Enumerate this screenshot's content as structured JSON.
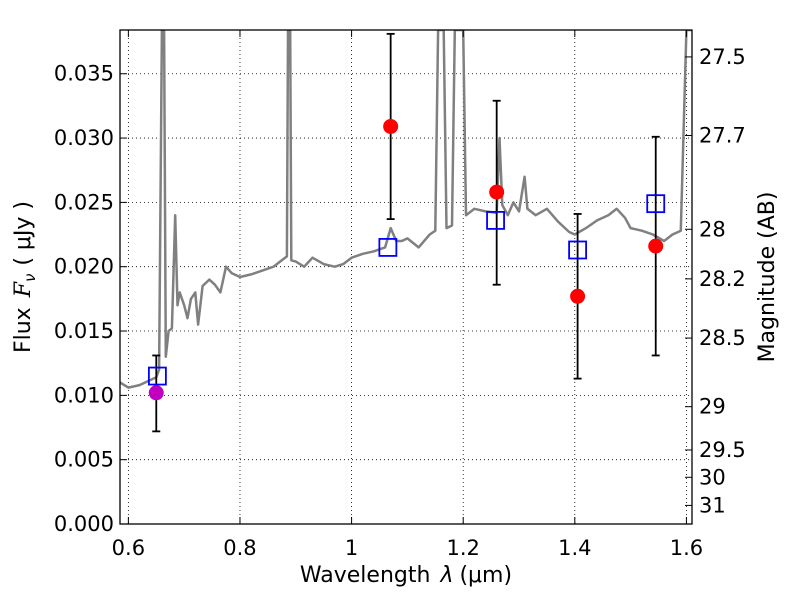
{
  "chart_data": {
    "type": "scatter",
    "xlabel_text": "Wavelength",
    "xlabel_symbol": "λ",
    "xlabel_unit": "(μm)",
    "ylabel_text": "Flux",
    "ylabel_symbol": "F",
    "ylabel_subscript": "ν",
    "ylabel_unit": "( μJy )",
    "y2label": "Magnitude (AB)",
    "xlim": [
      0.585,
      1.61
    ],
    "ylim": [
      0.0,
      0.0384
    ],
    "grid": true,
    "x_ticks": [
      0.6,
      0.8,
      1.0,
      1.2,
      1.4,
      1.6
    ],
    "x_tick_labels": [
      "0.6",
      "0.8",
      "1",
      "1.2",
      "1.4",
      "1.6"
    ],
    "y_ticks": [
      0.0,
      0.005,
      0.01,
      0.015,
      0.02,
      0.025,
      0.03,
      0.035
    ],
    "y_tick_labels": [
      "0.000",
      "0.005",
      "0.010",
      "0.015",
      "0.020",
      "0.025",
      "0.030",
      "0.035"
    ],
    "y2_ticks": [
      {
        "mag": 27.5,
        "label": "27.5"
      },
      {
        "mag": 27.7,
        "label": "27.7"
      },
      {
        "mag": 28.0,
        "label": "28"
      },
      {
        "mag": 28.2,
        "label": "28.2"
      },
      {
        "mag": 28.5,
        "label": "28.5"
      },
      {
        "mag": 29.0,
        "label": "29"
      },
      {
        "mag": 29.5,
        "label": "29.5"
      },
      {
        "mag": 30.0,
        "label": "30"
      },
      {
        "mag": 31.0,
        "label": "31"
      }
    ],
    "model_spectrum": {
      "color": "#808080",
      "points": [
        [
          0.585,
          0.011
        ],
        [
          0.6,
          0.0106
        ],
        [
          0.62,
          0.0108
        ],
        [
          0.64,
          0.0112
        ],
        [
          0.65,
          0.0114
        ],
        [
          0.655,
          0.012
        ],
        [
          0.66,
          0.0384
        ],
        [
          0.664,
          0.0384
        ],
        [
          0.667,
          0.013
        ],
        [
          0.672,
          0.015
        ],
        [
          0.678,
          0.0152
        ],
        [
          0.684,
          0.024
        ],
        [
          0.688,
          0.017
        ],
        [
          0.692,
          0.018
        ],
        [
          0.7,
          0.017
        ],
        [
          0.706,
          0.016
        ],
        [
          0.712,
          0.0175
        ],
        [
          0.72,
          0.018
        ],
        [
          0.725,
          0.0155
        ],
        [
          0.733,
          0.0185
        ],
        [
          0.745,
          0.019
        ],
        [
          0.755,
          0.0186
        ],
        [
          0.765,
          0.018
        ],
        [
          0.775,
          0.02
        ],
        [
          0.785,
          0.0195
        ],
        [
          0.8,
          0.0192
        ],
        [
          0.82,
          0.0194
        ],
        [
          0.84,
          0.0197
        ],
        [
          0.86,
          0.02
        ],
        [
          0.875,
          0.0205
        ],
        [
          0.884,
          0.0208
        ],
        [
          0.886,
          0.0384
        ],
        [
          0.89,
          0.0384
        ],
        [
          0.892,
          0.0205
        ],
        [
          0.9,
          0.0204
        ],
        [
          0.915,
          0.02
        ],
        [
          0.93,
          0.0207
        ],
        [
          0.95,
          0.0202
        ],
        [
          0.97,
          0.02
        ],
        [
          0.985,
          0.0202
        ],
        [
          1.0,
          0.0207
        ],
        [
          1.02,
          0.021
        ],
        [
          1.04,
          0.0212
        ],
        [
          1.06,
          0.0215
        ],
        [
          1.07,
          0.023
        ],
        [
          1.08,
          0.022
        ],
        [
          1.09,
          0.022
        ],
        [
          1.1,
          0.0222
        ],
        [
          1.12,
          0.0215
        ],
        [
          1.14,
          0.0225
        ],
        [
          1.15,
          0.0228
        ],
        [
          1.155,
          0.0384
        ],
        [
          1.165,
          0.0384
        ],
        [
          1.17,
          0.023
        ],
        [
          1.18,
          0.0232
        ],
        [
          1.185,
          0.0384
        ],
        [
          1.2,
          0.0384
        ],
        [
          1.205,
          0.024
        ],
        [
          1.22,
          0.0245
        ],
        [
          1.24,
          0.0243
        ],
        [
          1.26,
          0.0242
        ],
        [
          1.265,
          0.03
        ],
        [
          1.27,
          0.0248
        ],
        [
          1.28,
          0.024
        ],
        [
          1.29,
          0.025
        ],
        [
          1.3,
          0.0243
        ],
        [
          1.31,
          0.027
        ],
        [
          1.315,
          0.0245
        ],
        [
          1.33,
          0.024
        ],
        [
          1.35,
          0.0245
        ],
        [
          1.37,
          0.0235
        ],
        [
          1.39,
          0.0227
        ],
        [
          1.4,
          0.0225
        ],
        [
          1.42,
          0.023
        ],
        [
          1.44,
          0.0236
        ],
        [
          1.46,
          0.024
        ],
        [
          1.475,
          0.0245
        ],
        [
          1.49,
          0.0238
        ],
        [
          1.5,
          0.023
        ],
        [
          1.52,
          0.0228
        ],
        [
          1.54,
          0.0225
        ],
        [
          1.56,
          0.022
        ],
        [
          1.575,
          0.0225
        ],
        [
          1.59,
          0.0228
        ],
        [
          1.6,
          0.0384
        ],
        [
          1.61,
          0.0384
        ]
      ]
    },
    "observed_points": [
      {
        "x": 0.65,
        "y": 0.0102,
        "yerr_low": 0.0072,
        "yerr_high": 0.0131,
        "color": "#bf00bf"
      },
      {
        "x": 1.07,
        "y": 0.0309,
        "yerr_low": 0.0237,
        "yerr_high": 0.0381,
        "color": "#ff0000"
      },
      {
        "x": 1.26,
        "y": 0.0258,
        "yerr_low": 0.0186,
        "yerr_high": 0.0329,
        "color": "#ff0000"
      },
      {
        "x": 1.405,
        "y": 0.0177,
        "yerr_low": 0.0113,
        "yerr_high": 0.0241,
        "color": "#ff0000"
      },
      {
        "x": 1.545,
        "y": 0.0216,
        "yerr_low": 0.0131,
        "yerr_high": 0.0301,
        "color": "#ff0000"
      }
    ],
    "model_points": [
      {
        "x": 0.652,
        "y": 0.0115
      },
      {
        "x": 1.065,
        "y": 0.0215
      },
      {
        "x": 1.258,
        "y": 0.0236
      },
      {
        "x": 1.405,
        "y": 0.0213
      },
      {
        "x": 1.545,
        "y": 0.0249
      }
    ],
    "colors": {
      "spectrum": "#808080",
      "model_marker": "#0000ff",
      "observed": "#ff0000",
      "observed_first": "#bf00bf",
      "errorbar": "#000000",
      "grid": "#000000"
    }
  }
}
